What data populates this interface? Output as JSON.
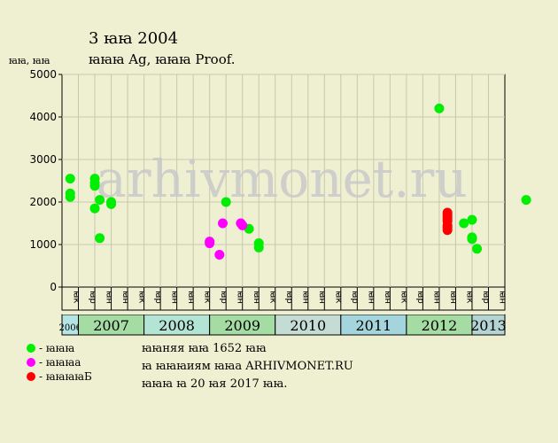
{
  "header": {
    "title": "3 ꙗꙗ 2004",
    "subtitle": "ꙗꙗꙗ Ag, ꙗꙗꙗ Proof.",
    "ylabel": "ꙗꙗ, ꙗꙗ"
  },
  "watermark": "arhivmonet.ru",
  "legend": [
    {
      "label": "- ꙗꙗꙗ",
      "color": "#00ee00"
    },
    {
      "label": "- ꙗꙗꙗа",
      "color": "#ff00ff"
    },
    {
      "label": "- ꙗꙗꙗꙗБ",
      "color": "#ff0000"
    }
  ],
  "notes": [
    "ꙗꙗняя ꙗꙗ 1652 ꙗꙗ",
    "ꙗ ꙗꙗꙗиям ꙗꙗа ARHIVMONET.RU",
    "ꙗꙗꙗ ꙗ 20 ꙗя 2017 ꙗꙗ."
  ],
  "chart_data": {
    "type": "scatter",
    "ylim": [
      0,
      5000
    ],
    "yticks": [
      0,
      1000,
      2000,
      3000,
      4000,
      5000
    ],
    "grid": true,
    "years": [
      {
        "label": "2006",
        "quarters": [
          "ꙗк"
        ],
        "color": "#b4e4e4"
      },
      {
        "label": "2007",
        "quarters": [
          "ꙗр",
          "ꙗн",
          "ꙗн",
          "ꙗк"
        ],
        "color": "#a4dca4"
      },
      {
        "label": "2008",
        "quarters": [
          "ꙗр",
          "ꙗн",
          "ꙗн",
          "ꙗк"
        ],
        "color": "#b4e4d4"
      },
      {
        "label": "2009",
        "quarters": [
          "ꙗр",
          "ꙗн",
          "ꙗн",
          "ꙗк"
        ],
        "color": "#a4dca4"
      },
      {
        "label": "2010",
        "quarters": [
          "ꙗр",
          "ꙗн",
          "ꙗн",
          "ꙗк"
        ],
        "color": "#c4dcd4"
      },
      {
        "label": "2011",
        "quarters": [
          "ꙗр",
          "ꙗн",
          "ꙗн",
          "ꙗк"
        ],
        "color": "#a4d4dc"
      },
      {
        "label": "2012",
        "quarters": [
          "ꙗр",
          "ꙗн",
          "ꙗн",
          "ꙗк"
        ],
        "color": "#a4dca4"
      },
      {
        "label": "2013",
        "quarters": [
          "ꙗр",
          "ꙗн"
        ],
        "color": "#b4d4d4"
      }
    ],
    "series": [
      {
        "color": "#00ee00",
        "points": [
          [
            0.5,
            2550
          ],
          [
            0.5,
            2200
          ],
          [
            0.5,
            2120
          ],
          [
            2.0,
            2550
          ],
          [
            2.0,
            2450
          ],
          [
            2.0,
            2380
          ],
          [
            2.0,
            1850
          ],
          [
            2.3,
            2050
          ],
          [
            2.3,
            1150
          ],
          [
            3.0,
            2000
          ],
          [
            3.0,
            1950
          ],
          [
            10.0,
            2000
          ],
          [
            11.4,
            1370
          ],
          [
            12.0,
            1030
          ],
          [
            12.0,
            930
          ],
          [
            23.0,
            4200
          ],
          [
            24.5,
            1500
          ],
          [
            25.0,
            1580
          ],
          [
            25.0,
            1170
          ],
          [
            25.0,
            1130
          ],
          [
            25.3,
            900
          ],
          [
            28.3,
            2050
          ]
        ]
      },
      {
        "color": "#ff00ff",
        "points": [
          [
            9.0,
            1070
          ],
          [
            9.0,
            1030
          ],
          [
            9.6,
            760
          ],
          [
            9.8,
            1500
          ],
          [
            10.9,
            1500
          ],
          [
            11.0,
            1450
          ]
        ]
      },
      {
        "color": "#ff0000",
        "points": [
          [
            23.5,
            1750
          ],
          [
            23.5,
            1700
          ],
          [
            23.5,
            1650
          ],
          [
            23.5,
            1600
          ],
          [
            23.5,
            1550
          ],
          [
            23.5,
            1450
          ],
          [
            23.5,
            1400
          ],
          [
            23.5,
            1340
          ]
        ]
      }
    ]
  }
}
